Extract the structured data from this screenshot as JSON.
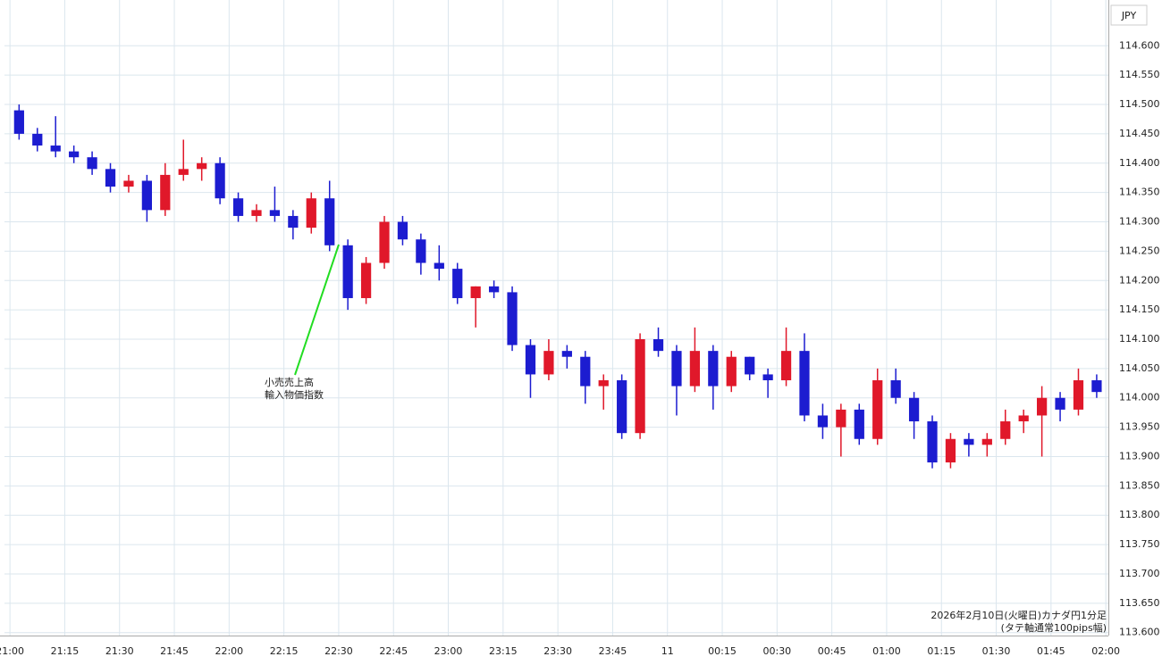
{
  "chart_data": {
    "type": "candlestick",
    "currency": "JPY",
    "footer": [
      "2026年2月10日(火曜日)カナダ円1分足",
      "(タテ軸通常100pips幅)"
    ],
    "annotation": [
      "小売売上高",
      "輸入物価指数"
    ],
    "colors": {
      "up": "#e0182a",
      "down": "#1c1cd0"
    },
    "grid": true,
    "xlim": [
      -1.5,
      300.7
    ],
    "ylim": [
      113.595,
      114.678
    ],
    "x": [
      2.5,
      7.5,
      12.5,
      17.5,
      22.5,
      27.5,
      32.5,
      37.5,
      42.5,
      47.5,
      52.5,
      57.5,
      62.5,
      67.5,
      72.5,
      77.5,
      82.5,
      87.5,
      92.5,
      97.5,
      102.5,
      107.5,
      112.5,
      117.5,
      122.5,
      127.5,
      132.5,
      137.5,
      142.5,
      147.5,
      152.5,
      157.5,
      162.5,
      167.5,
      172.5,
      177.5,
      182.5,
      187.5,
      192.5,
      197.5,
      202.5,
      207.5,
      212.5,
      217.5,
      222.5,
      227.5,
      232.5,
      237.5,
      242.5,
      247.5,
      252.5,
      257.5,
      262.5,
      267.5,
      272.5,
      277.5,
      282.5,
      287.5,
      292.5,
      297.5
    ],
    "open": [
      114.49,
      114.45,
      114.43,
      114.42,
      114.41,
      114.39,
      114.36,
      114.37,
      114.32,
      114.38,
      114.39,
      114.4,
      114.34,
      114.31,
      114.32,
      114.31,
      114.29,
      114.34,
      114.26,
      114.17,
      114.23,
      114.3,
      114.27,
      114.23,
      114.22,
      114.17,
      114.19,
      114.18,
      114.09,
      114.04,
      114.08,
      114.07,
      114.02,
      114.03,
      113.94,
      114.1,
      114.08,
      114.02,
      114.08,
      114.02,
      114.07,
      114.04,
      114.03,
      114.08,
      113.97,
      113.95,
      113.98,
      113.93,
      114.03,
      114.0,
      113.96,
      113.89,
      113.93,
      113.92,
      113.93,
      113.96,
      113.97,
      114.0,
      113.98,
      114.03
    ],
    "high": [
      114.5,
      114.46,
      114.48,
      114.43,
      114.42,
      114.4,
      114.38,
      114.38,
      114.4,
      114.44,
      114.41,
      114.41,
      114.35,
      114.33,
      114.36,
      114.32,
      114.35,
      114.37,
      114.27,
      114.24,
      114.31,
      114.31,
      114.28,
      114.26,
      114.23,
      114.19,
      114.2,
      114.19,
      114.1,
      114.1,
      114.09,
      114.08,
      114.04,
      114.04,
      114.11,
      114.12,
      114.09,
      114.12,
      114.09,
      114.08,
      114.07,
      114.05,
      114.12,
      114.11,
      113.99,
      113.99,
      113.99,
      114.05,
      114.05,
      114.01,
      113.97,
      113.94,
      113.94,
      113.94,
      113.98,
      113.98,
      114.02,
      114.01,
      114.05,
      114.04
    ],
    "low": [
      114.44,
      114.42,
      114.41,
      114.4,
      114.38,
      114.35,
      114.35,
      114.3,
      114.31,
      114.37,
      114.37,
      114.33,
      114.3,
      114.3,
      114.3,
      114.27,
      114.28,
      114.25,
      114.15,
      114.16,
      114.22,
      114.26,
      114.21,
      114.2,
      114.16,
      114.12,
      114.17,
      114.08,
      114.0,
      114.03,
      114.05,
      113.99,
      113.98,
      113.93,
      113.93,
      114.07,
      113.97,
      114.01,
      113.98,
      114.01,
      114.03,
      114.0,
      114.02,
      113.96,
      113.93,
      113.9,
      113.92,
      113.92,
      113.99,
      113.93,
      113.88,
      113.88,
      113.9,
      113.9,
      113.92,
      113.94,
      113.9,
      113.96,
      113.97,
      114.0
    ],
    "close": [
      114.45,
      114.43,
      114.42,
      114.41,
      114.39,
      114.36,
      114.37,
      114.32,
      114.38,
      114.39,
      114.4,
      114.34,
      114.31,
      114.32,
      114.31,
      114.29,
      114.34,
      114.26,
      114.17,
      114.23,
      114.3,
      114.27,
      114.23,
      114.22,
      114.17,
      114.19,
      114.18,
      114.09,
      114.04,
      114.08,
      114.07,
      114.02,
      114.03,
      113.94,
      114.1,
      114.08,
      114.02,
      114.08,
      114.02,
      114.07,
      114.04,
      114.03,
      114.08,
      113.97,
      113.95,
      113.98,
      113.93,
      114.03,
      114.0,
      113.96,
      113.89,
      113.93,
      113.92,
      113.93,
      113.96,
      113.97,
      114.0,
      113.98,
      114.03,
      114.01
    ],
    "xticks": [
      {
        "value": 0,
        "label": "21:00"
      },
      {
        "value": 15,
        "label": "21:15"
      },
      {
        "value": 30,
        "label": "21:30"
      },
      {
        "value": 45,
        "label": "21:45"
      },
      {
        "value": 60,
        "label": "22:00"
      },
      {
        "value": 75,
        "label": "22:15"
      },
      {
        "value": 90,
        "label": "22:30"
      },
      {
        "value": 105,
        "label": "22:45"
      },
      {
        "value": 120,
        "label": "23:00"
      },
      {
        "value": 135,
        "label": "23:15"
      },
      {
        "value": 150,
        "label": "23:30"
      },
      {
        "value": 165,
        "label": "23:45"
      },
      {
        "value": 180,
        "label": "11"
      },
      {
        "value": 195,
        "label": "00:15"
      },
      {
        "value": 210,
        "label": "00:30"
      },
      {
        "value": 225,
        "label": "00:45"
      },
      {
        "value": 240,
        "label": "01:00"
      },
      {
        "value": 255,
        "label": "01:15"
      },
      {
        "value": 270,
        "label": "01:30"
      },
      {
        "value": 285,
        "label": "01:45"
      },
      {
        "value": 300,
        "label": "02:00"
      }
    ],
    "yticks": [
      {
        "value": 113.6,
        "label": "113.600"
      },
      {
        "value": 113.65,
        "label": "113.650"
      },
      {
        "value": 113.7,
        "label": "113.700"
      },
      {
        "value": 113.75,
        "label": "113.750"
      },
      {
        "value": 113.8,
        "label": "113.800"
      },
      {
        "value": 113.85,
        "label": "113.850"
      },
      {
        "value": 113.9,
        "label": "113.900"
      },
      {
        "value": 113.95,
        "label": "113.950"
      },
      {
        "value": 114.0,
        "label": "114.000"
      },
      {
        "value": 114.05,
        "label": "114.050"
      },
      {
        "value": 114.1,
        "label": "114.100"
      },
      {
        "value": 114.15,
        "label": "114.150"
      },
      {
        "value": 114.2,
        "label": "114.200"
      },
      {
        "value": 114.25,
        "label": "114.250"
      },
      {
        "value": 114.3,
        "label": "114.300"
      },
      {
        "value": 114.35,
        "label": "114.350"
      },
      {
        "value": 114.4,
        "label": "114.400"
      },
      {
        "value": 114.45,
        "label": "114.450"
      },
      {
        "value": 114.5,
        "label": "114.500"
      },
      {
        "value": 114.55,
        "label": "114.550"
      },
      {
        "value": 114.6,
        "label": "114.600"
      }
    ]
  }
}
